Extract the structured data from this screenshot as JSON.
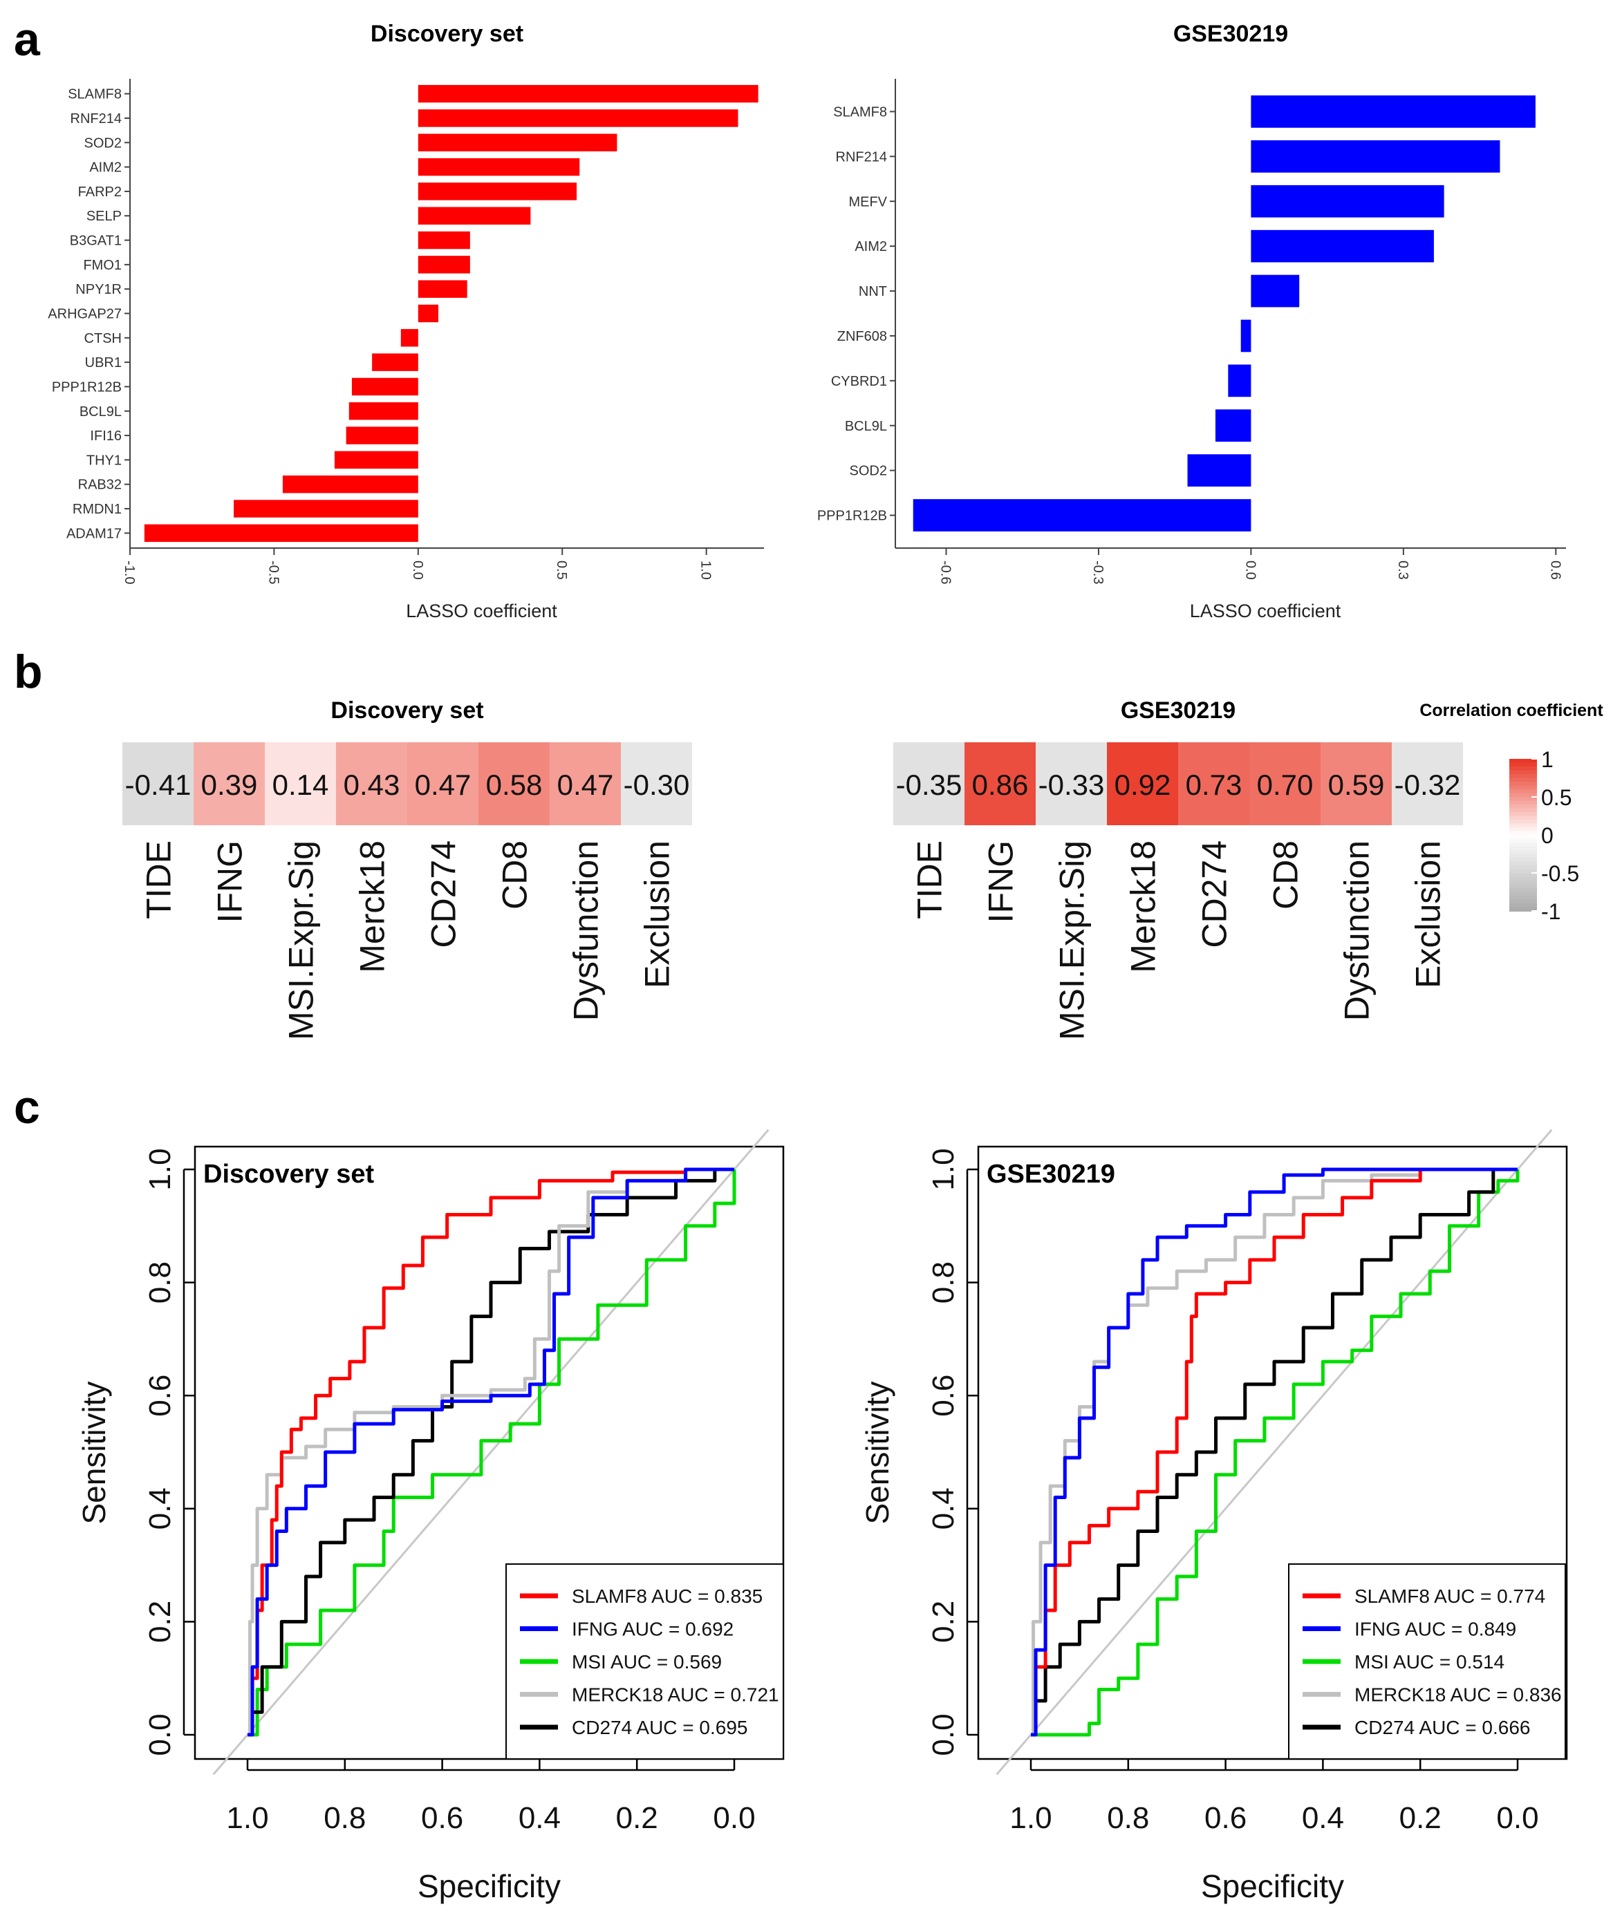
{
  "panels": {
    "a": "a",
    "b": "b",
    "c": "c"
  },
  "colors": {
    "discovery_bar": "#ff0000",
    "gse_bar": "#0000ff",
    "heat_pos": "#e8311f",
    "heat_neg": "#bdbdbd",
    "heat_zero": "#ffffff"
  },
  "chart_data": [
    {
      "id": "lasso_discovery",
      "type": "bar",
      "orientation": "horizontal",
      "title": "Discovery set",
      "xlabel": "LASSO coefficient",
      "xlim": [
        -1.0,
        1.2
      ],
      "xticks": [
        -1.0,
        -0.5,
        0.0,
        0.5,
        1.0
      ],
      "xtick_labels": [
        "-1.0",
        "-0.5",
        "0.0",
        "0.5",
        "1.0"
      ],
      "categories": [
        "SLAMF8",
        "RNF214",
        "SOD2",
        "AIM2",
        "FARP2",
        "SELP",
        "B3GAT1",
        "FMO1",
        "NPY1R",
        "ARHGAP27",
        "CTSH",
        "UBR1",
        "PPP1R12B",
        "BCL9L",
        "IFI16",
        "THY1",
        "RAB32",
        "RMDN1",
        "ADAM17"
      ],
      "values": [
        1.18,
        1.11,
        0.69,
        0.56,
        0.55,
        0.39,
        0.18,
        0.18,
        0.17,
        0.07,
        -0.06,
        -0.16,
        -0.23,
        -0.24,
        -0.25,
        -0.29,
        -0.47,
        -0.64,
        -0.95
      ]
    },
    {
      "id": "lasso_gse",
      "type": "bar",
      "orientation": "horizontal",
      "title": "GSE30219",
      "xlabel": "LASSO coefficient",
      "xlim": [
        -0.7,
        0.62
      ],
      "xticks": [
        -0.6,
        -0.3,
        0.0,
        0.3,
        0.6
      ],
      "xtick_labels": [
        "-0.6",
        "-0.3",
        "0.0",
        "0.3",
        "0.6"
      ],
      "categories": [
        "SLAMF8",
        "RNF214",
        "MEFV",
        "AIM2",
        "NNT",
        "ZNF608",
        "CYBRD1",
        "BCL9L",
        "SOD2",
        "PPP1R12B"
      ],
      "values": [
        0.56,
        0.49,
        0.38,
        0.36,
        0.095,
        -0.02,
        -0.045,
        -0.07,
        -0.125,
        -0.665
      ]
    },
    {
      "id": "heat_discovery",
      "type": "heatmap",
      "title": "Discovery set",
      "categories": [
        "TIDE",
        "IFNG",
        "MSI.Expr.Sig",
        "Merck18",
        "CD274",
        "CD8",
        "Dysfunction",
        "Exclusion"
      ],
      "values": [
        -0.41,
        0.39,
        0.14,
        0.43,
        0.47,
        0.58,
        0.47,
        -0.3
      ],
      "value_labels": [
        "-0.41",
        "0.39",
        "0.14",
        "0.43",
        "0.47",
        "0.58",
        "0.47",
        "-0.30"
      ]
    },
    {
      "id": "heat_gse",
      "type": "heatmap",
      "title": "GSE30219",
      "categories": [
        "TIDE",
        "IFNG",
        "MSI.Expr.Sig",
        "Merck18",
        "CD274",
        "CD8",
        "Dysfunction",
        "Exclusion"
      ],
      "values": [
        -0.35,
        0.86,
        -0.33,
        0.92,
        0.73,
        0.7,
        0.59,
        -0.32
      ],
      "value_labels": [
        "-0.35",
        "0.86",
        "-0.33",
        "0.92",
        "0.73",
        "0.70",
        "0.59",
        "-0.32"
      ],
      "legend": {
        "title": "Correlation coefficient",
        "ticks": [
          1,
          0.5,
          0,
          -0.5,
          -1
        ],
        "tick_labels": [
          "1",
          "0.5",
          "0",
          "-0.5",
          "-1"
        ]
      }
    },
    {
      "id": "roc_discovery",
      "type": "line",
      "title": "Discovery set",
      "xlabel": "Specificity",
      "ylabel": "Sensitivity",
      "xlim": [
        1.0,
        0.0
      ],
      "ylim": [
        0.0,
        1.0
      ],
      "xticks": [
        "1.0",
        "0.8",
        "0.6",
        "0.4",
        "0.2",
        "0.0"
      ],
      "yticks": [
        "0.0",
        "0.2",
        "0.4",
        "0.6",
        "0.8",
        "1.0"
      ],
      "series": [
        {
          "name": "SLAMF8",
          "legend": "SLAMF8 AUC = ",
          "auc": "0.835",
          "color": "#ff0000",
          "points": [
            [
              1.0,
              0
            ],
            [
              0.99,
              0.1
            ],
            [
              0.98,
              0.22
            ],
            [
              0.97,
              0.3
            ],
            [
              0.95,
              0.38
            ],
            [
              0.94,
              0.44
            ],
            [
              0.93,
              0.5
            ],
            [
              0.91,
              0.54
            ],
            [
              0.89,
              0.56
            ],
            [
              0.86,
              0.6
            ],
            [
              0.83,
              0.63
            ],
            [
              0.79,
              0.66
            ],
            [
              0.76,
              0.72
            ],
            [
              0.72,
              0.79
            ],
            [
              0.68,
              0.83
            ],
            [
              0.64,
              0.88
            ],
            [
              0.59,
              0.92
            ],
            [
              0.5,
              0.95
            ],
            [
              0.4,
              0.98
            ],
            [
              0.25,
              0.995
            ],
            [
              0.1,
              1.0
            ],
            [
              0.0,
              1.0
            ]
          ]
        },
        {
          "name": "IFNG",
          "legend": "IFNG AUC = ",
          "auc": "0.692",
          "color": "#0000ff",
          "points": [
            [
              1.0,
              0
            ],
            [
              0.99,
              0.12
            ],
            [
              0.98,
              0.24
            ],
            [
              0.96,
              0.3
            ],
            [
              0.94,
              0.36
            ],
            [
              0.92,
              0.4
            ],
            [
              0.88,
              0.44
            ],
            [
              0.84,
              0.5
            ],
            [
              0.78,
              0.55
            ],
            [
              0.7,
              0.575
            ],
            [
              0.6,
              0.59
            ],
            [
              0.5,
              0.6
            ],
            [
              0.42,
              0.62
            ],
            [
              0.39,
              0.68
            ],
            [
              0.37,
              0.78
            ],
            [
              0.34,
              0.88
            ],
            [
              0.29,
              0.95
            ],
            [
              0.22,
              0.98
            ],
            [
              0.1,
              1.0
            ],
            [
              0.0,
              1.0
            ]
          ]
        },
        {
          "name": "MSI",
          "legend": "MSI AUC = ",
          "auc": "0.569",
          "color": "#00dd00",
          "points": [
            [
              1.0,
              0
            ],
            [
              0.98,
              0.08
            ],
            [
              0.96,
              0.12
            ],
            [
              0.92,
              0.16
            ],
            [
              0.85,
              0.22
            ],
            [
              0.78,
              0.3
            ],
            [
              0.72,
              0.36
            ],
            [
              0.7,
              0.42
            ],
            [
              0.62,
              0.46
            ],
            [
              0.52,
              0.52
            ],
            [
              0.46,
              0.55
            ],
            [
              0.4,
              0.62
            ],
            [
              0.36,
              0.7
            ],
            [
              0.28,
              0.76
            ],
            [
              0.18,
              0.84
            ],
            [
              0.1,
              0.9
            ],
            [
              0.04,
              0.94
            ],
            [
              0.0,
              1.0
            ]
          ]
        },
        {
          "name": "MERCK18",
          "legend": "MERCK18 AUC = ",
          "auc": "0.721",
          "color": "#c0c0c0",
          "points": [
            [
              1.0,
              0
            ],
            [
              0.995,
              0.2
            ],
            [
              0.99,
              0.3
            ],
            [
              0.98,
              0.4
            ],
            [
              0.96,
              0.46
            ],
            [
              0.93,
              0.49
            ],
            [
              0.88,
              0.51
            ],
            [
              0.84,
              0.54
            ],
            [
              0.78,
              0.57
            ],
            [
              0.7,
              0.58
            ],
            [
              0.6,
              0.6
            ],
            [
              0.5,
              0.61
            ],
            [
              0.43,
              0.63
            ],
            [
              0.41,
              0.7
            ],
            [
              0.38,
              0.82
            ],
            [
              0.36,
              0.9
            ],
            [
              0.3,
              0.96
            ],
            [
              0.22,
              0.98
            ],
            [
              0.1,
              1.0
            ],
            [
              0.0,
              1.0
            ]
          ]
        },
        {
          "name": "CD274",
          "legend": "CD274 AUC = ",
          "auc": "0.695",
          "color": "#000000",
          "points": [
            [
              1.0,
              0
            ],
            [
              0.99,
              0.04
            ],
            [
              0.97,
              0.12
            ],
            [
              0.93,
              0.2
            ],
            [
              0.88,
              0.28
            ],
            [
              0.85,
              0.34
            ],
            [
              0.8,
              0.38
            ],
            [
              0.74,
              0.42
            ],
            [
              0.7,
              0.46
            ],
            [
              0.66,
              0.52
            ],
            [
              0.62,
              0.58
            ],
            [
              0.58,
              0.66
            ],
            [
              0.54,
              0.74
            ],
            [
              0.5,
              0.8
            ],
            [
              0.44,
              0.86
            ],
            [
              0.38,
              0.89
            ],
            [
              0.3,
              0.92
            ],
            [
              0.22,
              0.95
            ],
            [
              0.12,
              0.98
            ],
            [
              0.04,
              1.0
            ],
            [
              0.0,
              1.0
            ]
          ]
        }
      ]
    },
    {
      "id": "roc_gse",
      "type": "line",
      "title": "GSE30219",
      "xlabel": "Specificity",
      "ylabel": "Sensitivity",
      "xlim": [
        1.0,
        0.0
      ],
      "ylim": [
        0.0,
        1.0
      ],
      "xticks": [
        "1.0",
        "0.8",
        "0.6",
        "0.4",
        "0.2",
        "0.0"
      ],
      "yticks": [
        "0.0",
        "0.2",
        "0.4",
        "0.6",
        "0.8",
        "1.0"
      ],
      "series": [
        {
          "name": "SLAMF8",
          "legend": "SLAMF8 AUC = ",
          "auc": "0.774",
          "color": "#ff0000",
          "points": [
            [
              1.0,
              0
            ],
            [
              0.99,
              0.12
            ],
            [
              0.97,
              0.22
            ],
            [
              0.95,
              0.3
            ],
            [
              0.92,
              0.34
            ],
            [
              0.88,
              0.37
            ],
            [
              0.84,
              0.4
            ],
            [
              0.78,
              0.43
            ],
            [
              0.74,
              0.5
            ],
            [
              0.7,
              0.56
            ],
            [
              0.68,
              0.66
            ],
            [
              0.67,
              0.74
            ],
            [
              0.66,
              0.78
            ],
            [
              0.6,
              0.8
            ],
            [
              0.55,
              0.84
            ],
            [
              0.5,
              0.88
            ],
            [
              0.44,
              0.92
            ],
            [
              0.36,
              0.95
            ],
            [
              0.3,
              0.98
            ],
            [
              0.2,
              1.0
            ],
            [
              0.0,
              1.0
            ]
          ]
        },
        {
          "name": "IFNG",
          "legend": "IFNG AUC = ",
          "auc": "0.849",
          "color": "#0000ff",
          "points": [
            [
              1.0,
              0
            ],
            [
              0.99,
              0.15
            ],
            [
              0.97,
              0.3
            ],
            [
              0.95,
              0.42
            ],
            [
              0.93,
              0.49
            ],
            [
              0.9,
              0.56
            ],
            [
              0.87,
              0.65
            ],
            [
              0.84,
              0.72
            ],
            [
              0.8,
              0.78
            ],
            [
              0.77,
              0.84
            ],
            [
              0.74,
              0.88
            ],
            [
              0.68,
              0.9
            ],
            [
              0.6,
              0.92
            ],
            [
              0.55,
              0.96
            ],
            [
              0.48,
              0.99
            ],
            [
              0.4,
              1.0
            ],
            [
              0.0,
              1.0
            ]
          ]
        },
        {
          "name": "MSI",
          "legend": "MSI AUC = ",
          "auc": "0.514",
          "color": "#00dd00",
          "points": [
            [
              1.0,
              0
            ],
            [
              0.9,
              0
            ],
            [
              0.88,
              0.02
            ],
            [
              0.86,
              0.08
            ],
            [
              0.82,
              0.1
            ],
            [
              0.78,
              0.16
            ],
            [
              0.74,
              0.24
            ],
            [
              0.7,
              0.28
            ],
            [
              0.66,
              0.36
            ],
            [
              0.62,
              0.46
            ],
            [
              0.58,
              0.52
            ],
            [
              0.52,
              0.56
            ],
            [
              0.46,
              0.62
            ],
            [
              0.4,
              0.66
            ],
            [
              0.34,
              0.68
            ],
            [
              0.3,
              0.74
            ],
            [
              0.24,
              0.78
            ],
            [
              0.18,
              0.82
            ],
            [
              0.14,
              0.9
            ],
            [
              0.08,
              0.96
            ],
            [
              0.04,
              0.98
            ],
            [
              0.0,
              1.0
            ]
          ]
        },
        {
          "name": "MERCK18",
          "legend": "MERCK18 AUC = ",
          "auc": "0.836",
          "color": "#c0c0c0",
          "points": [
            [
              1.0,
              0
            ],
            [
              0.995,
              0.2
            ],
            [
              0.98,
              0.34
            ],
            [
              0.96,
              0.44
            ],
            [
              0.93,
              0.52
            ],
            [
              0.9,
              0.58
            ],
            [
              0.87,
              0.66
            ],
            [
              0.84,
              0.72
            ],
            [
              0.8,
              0.76
            ],
            [
              0.76,
              0.79
            ],
            [
              0.7,
              0.82
            ],
            [
              0.64,
              0.84
            ],
            [
              0.58,
              0.88
            ],
            [
              0.52,
              0.92
            ],
            [
              0.46,
              0.95
            ],
            [
              0.4,
              0.98
            ],
            [
              0.3,
              0.99
            ],
            [
              0.2,
              1.0
            ],
            [
              0.0,
              1.0
            ]
          ]
        },
        {
          "name": "CD274",
          "legend": "CD274 AUC = ",
          "auc": "0.666",
          "color": "#000000",
          "points": [
            [
              1.0,
              0
            ],
            [
              0.99,
              0.06
            ],
            [
              0.97,
              0.12
            ],
            [
              0.94,
              0.16
            ],
            [
              0.9,
              0.2
            ],
            [
              0.86,
              0.24
            ],
            [
              0.82,
              0.3
            ],
            [
              0.78,
              0.36
            ],
            [
              0.74,
              0.42
            ],
            [
              0.7,
              0.46
            ],
            [
              0.66,
              0.5
            ],
            [
              0.62,
              0.56
            ],
            [
              0.56,
              0.62
            ],
            [
              0.5,
              0.66
            ],
            [
              0.44,
              0.72
            ],
            [
              0.38,
              0.78
            ],
            [
              0.32,
              0.84
            ],
            [
              0.26,
              0.88
            ],
            [
              0.2,
              0.92
            ],
            [
              0.1,
              0.96
            ],
            [
              0.05,
              1.0
            ],
            [
              0.0,
              1.0
            ]
          ]
        }
      ]
    }
  ]
}
